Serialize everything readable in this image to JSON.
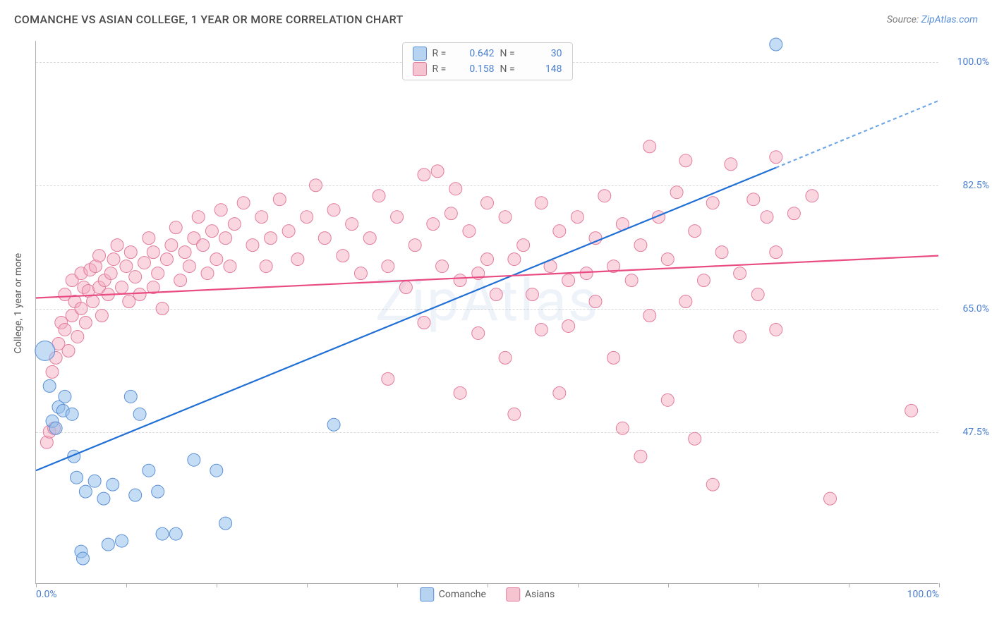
{
  "title": "COMANCHE VS ASIAN COLLEGE, 1 YEAR OR MORE CORRELATION CHART",
  "source_prefix": "Source: ",
  "source_name": "ZipAtlas.com",
  "watermark": "ZipAtlas",
  "chart": {
    "type": "scatter",
    "background_color": "#ffffff",
    "grid_color": "#d8d8d8",
    "axis_color": "#b0b0b0",
    "y_label": "College, 1 year or more",
    "y_label_fontsize": 14,
    "label_color": "#5a5a5a",
    "tick_label_color": "#4a7fd0",
    "tick_fontsize": 14,
    "xlim": [
      0,
      100
    ],
    "ylim": [
      26,
      103
    ],
    "x_tick_positions": [
      0,
      10,
      20,
      30,
      40,
      50,
      60,
      70,
      80,
      90,
      100
    ],
    "x_tick_labels": {
      "0": "0.0%",
      "100": "100.0%"
    },
    "y_gridlines": [
      47.5,
      65.0,
      82.5,
      100.0
    ],
    "y_tick_labels": [
      "47.5%",
      "65.0%",
      "82.5%",
      "100.0%"
    ],
    "legend_top": {
      "border_color": "#d0d0d0",
      "rows": [
        {
          "swatch_fill": "#b6d3f2",
          "swatch_stroke": "#5a8fd6",
          "r_label": "R =",
          "r_value": "0.642",
          "n_label": "N =",
          "n_value": "30"
        },
        {
          "swatch_fill": "#f6c4d1",
          "swatch_stroke": "#e37c9c",
          "r_label": "R =",
          "r_value": "0.158",
          "n_label": "N =",
          "n_value": "148"
        }
      ]
    },
    "legend_bottom": [
      {
        "swatch_fill": "#b6d3f2",
        "swatch_stroke": "#5a8fd6",
        "label": "Comanche"
      },
      {
        "swatch_fill": "#f6c4d1",
        "swatch_stroke": "#e37c9c",
        "label": "Asians"
      }
    ],
    "series": [
      {
        "name": "Comanche",
        "marker_fill": "rgba(149,192,236,0.55)",
        "marker_stroke": "#5a8fd6",
        "marker_stroke_width": 1,
        "marker_radius": 9,
        "trend": {
          "x1": 0,
          "y1": 42,
          "x2": 82,
          "y2": 85,
          "x2_dash": 100,
          "y2_dash": 94.5,
          "solid_color": "#1f6fd6",
          "dash_color": "#6fa6e6",
          "width": 2.2,
          "dash_pattern": "5,4"
        },
        "points": [
          {
            "x": 1.0,
            "y": 59,
            "r": 14
          },
          {
            "x": 1.5,
            "y": 54
          },
          {
            "x": 1.8,
            "y": 49
          },
          {
            "x": 2.2,
            "y": 48
          },
          {
            "x": 2.5,
            "y": 51
          },
          {
            "x": 3.0,
            "y": 50.5
          },
          {
            "x": 3.2,
            "y": 52.5
          },
          {
            "x": 4.0,
            "y": 50
          },
          {
            "x": 4.2,
            "y": 44
          },
          {
            "x": 4.5,
            "y": 41
          },
          {
            "x": 5.0,
            "y": 30.5
          },
          {
            "x": 5.2,
            "y": 29.5
          },
          {
            "x": 5.5,
            "y": 39
          },
          {
            "x": 6.5,
            "y": 40.5
          },
          {
            "x": 7.5,
            "y": 38
          },
          {
            "x": 8.0,
            "y": 31.5
          },
          {
            "x": 8.5,
            "y": 40
          },
          {
            "x": 9.5,
            "y": 32
          },
          {
            "x": 10.5,
            "y": 52.5
          },
          {
            "x": 11.0,
            "y": 38.5
          },
          {
            "x": 11.5,
            "y": 50
          },
          {
            "x": 12.5,
            "y": 42
          },
          {
            "x": 13.5,
            "y": 39
          },
          {
            "x": 14.0,
            "y": 33
          },
          {
            "x": 15.5,
            "y": 33
          },
          {
            "x": 17.5,
            "y": 43.5
          },
          {
            "x": 20.0,
            "y": 42
          },
          {
            "x": 21.0,
            "y": 34.5
          },
          {
            "x": 33.0,
            "y": 48.5
          },
          {
            "x": 82.0,
            "y": 102.5
          }
        ]
      },
      {
        "name": "Asians",
        "marker_fill": "rgba(242,170,190,0.48)",
        "marker_stroke": "#e37c9c",
        "marker_stroke_width": 1,
        "marker_radius": 9,
        "trend": {
          "x1": 0,
          "y1": 66.5,
          "x2": 100,
          "y2": 72.5,
          "solid_color": "#e94b82",
          "width": 2.2
        },
        "points": [
          {
            "x": 1.2,
            "y": 46
          },
          {
            "x": 1.5,
            "y": 47.5
          },
          {
            "x": 2.0,
            "y": 48
          },
          {
            "x": 1.8,
            "y": 56
          },
          {
            "x": 2.2,
            "y": 58
          },
          {
            "x": 2.5,
            "y": 60
          },
          {
            "x": 2.8,
            "y": 63
          },
          {
            "x": 3.2,
            "y": 62
          },
          {
            "x": 3.2,
            "y": 67
          },
          {
            "x": 3.6,
            "y": 59
          },
          {
            "x": 4.0,
            "y": 64
          },
          {
            "x": 4.0,
            "y": 69
          },
          {
            "x": 4.3,
            "y": 66
          },
          {
            "x": 4.6,
            "y": 61
          },
          {
            "x": 5.0,
            "y": 65
          },
          {
            "x": 5.0,
            "y": 70
          },
          {
            "x": 5.3,
            "y": 68
          },
          {
            "x": 5.5,
            "y": 63
          },
          {
            "x": 5.8,
            "y": 67.5
          },
          {
            "x": 6.0,
            "y": 70.5
          },
          {
            "x": 6.3,
            "y": 66
          },
          {
            "x": 6.6,
            "y": 71
          },
          {
            "x": 7.0,
            "y": 68
          },
          {
            "x": 7.0,
            "y": 72.5
          },
          {
            "x": 7.3,
            "y": 64
          },
          {
            "x": 7.6,
            "y": 69
          },
          {
            "x": 8.0,
            "y": 67
          },
          {
            "x": 8.3,
            "y": 70
          },
          {
            "x": 8.6,
            "y": 72
          },
          {
            "x": 9.0,
            "y": 74
          },
          {
            "x": 9.5,
            "y": 68
          },
          {
            "x": 10.0,
            "y": 71
          },
          {
            "x": 10.3,
            "y": 66
          },
          {
            "x": 10.5,
            "y": 73
          },
          {
            "x": 11.0,
            "y": 69.5
          },
          {
            "x": 11.5,
            "y": 67
          },
          {
            "x": 12.0,
            "y": 71.5
          },
          {
            "x": 12.5,
            "y": 75
          },
          {
            "x": 13.0,
            "y": 68
          },
          {
            "x": 13.0,
            "y": 73
          },
          {
            "x": 13.5,
            "y": 70
          },
          {
            "x": 14.0,
            "y": 65
          },
          {
            "x": 14.5,
            "y": 72
          },
          {
            "x": 15.0,
            "y": 74
          },
          {
            "x": 15.5,
            "y": 76.5
          },
          {
            "x": 16.0,
            "y": 69
          },
          {
            "x": 16.5,
            "y": 73
          },
          {
            "x": 17.0,
            "y": 71
          },
          {
            "x": 17.5,
            "y": 75
          },
          {
            "x": 18.0,
            "y": 78
          },
          {
            "x": 18.5,
            "y": 74
          },
          {
            "x": 19.0,
            "y": 70
          },
          {
            "x": 19.5,
            "y": 76
          },
          {
            "x": 20.0,
            "y": 72
          },
          {
            "x": 20.5,
            "y": 79
          },
          {
            "x": 21.0,
            "y": 75
          },
          {
            "x": 21.5,
            "y": 71
          },
          {
            "x": 22.0,
            "y": 77
          },
          {
            "x": 23.0,
            "y": 80
          },
          {
            "x": 24.0,
            "y": 74
          },
          {
            "x": 25.0,
            "y": 78
          },
          {
            "x": 25.5,
            "y": 71
          },
          {
            "x": 26.0,
            "y": 75
          },
          {
            "x": 27.0,
            "y": 80.5
          },
          {
            "x": 28.0,
            "y": 76
          },
          {
            "x": 29.0,
            "y": 72
          },
          {
            "x": 30.0,
            "y": 78
          },
          {
            "x": 31.0,
            "y": 82.5
          },
          {
            "x": 32.0,
            "y": 75
          },
          {
            "x": 33.0,
            "y": 79
          },
          {
            "x": 34.0,
            "y": 72.5
          },
          {
            "x": 35.0,
            "y": 77
          },
          {
            "x": 36.0,
            "y": 70
          },
          {
            "x": 37.0,
            "y": 75
          },
          {
            "x": 38.0,
            "y": 81
          },
          {
            "x": 39.0,
            "y": 71
          },
          {
            "x": 39.0,
            "y": 55
          },
          {
            "x": 40.0,
            "y": 78
          },
          {
            "x": 41.0,
            "y": 68
          },
          {
            "x": 42.0,
            "y": 74
          },
          {
            "x": 43.0,
            "y": 84
          },
          {
            "x": 43.0,
            "y": 63
          },
          {
            "x": 44.0,
            "y": 77
          },
          {
            "x": 44.5,
            "y": 84.5
          },
          {
            "x": 45.0,
            "y": 71
          },
          {
            "x": 46.0,
            "y": 78.5
          },
          {
            "x": 46.5,
            "y": 82
          },
          {
            "x": 47.0,
            "y": 69
          },
          {
            "x": 47.0,
            "y": 53
          },
          {
            "x": 48.0,
            "y": 76
          },
          {
            "x": 49.0,
            "y": 70
          },
          {
            "x": 49.0,
            "y": 61.5
          },
          {
            "x": 50.0,
            "y": 80
          },
          {
            "x": 50.0,
            "y": 72
          },
          {
            "x": 51.0,
            "y": 67
          },
          {
            "x": 52.0,
            "y": 78
          },
          {
            "x": 52.0,
            "y": 58
          },
          {
            "x": 53.0,
            "y": 72
          },
          {
            "x": 53.0,
            "y": 50
          },
          {
            "x": 54.0,
            "y": 74
          },
          {
            "x": 55.0,
            "y": 67
          },
          {
            "x": 56.0,
            "y": 80
          },
          {
            "x": 56.0,
            "y": 62
          },
          {
            "x": 57.0,
            "y": 71
          },
          {
            "x": 58.0,
            "y": 76
          },
          {
            "x": 58.0,
            "y": 53
          },
          {
            "x": 59.0,
            "y": 69
          },
          {
            "x": 59.0,
            "y": 62.5
          },
          {
            "x": 60.0,
            "y": 78
          },
          {
            "x": 61.0,
            "y": 70
          },
          {
            "x": 62.0,
            "y": 75
          },
          {
            "x": 62.0,
            "y": 66
          },
          {
            "x": 63.0,
            "y": 81
          },
          {
            "x": 64.0,
            "y": 71
          },
          {
            "x": 64.0,
            "y": 58
          },
          {
            "x": 65.0,
            "y": 77
          },
          {
            "x": 65.0,
            "y": 48
          },
          {
            "x": 66.0,
            "y": 69
          },
          {
            "x": 67.0,
            "y": 74
          },
          {
            "x": 67.0,
            "y": 44
          },
          {
            "x": 68.0,
            "y": 88
          },
          {
            "x": 68.0,
            "y": 64
          },
          {
            "x": 69.0,
            "y": 78
          },
          {
            "x": 70.0,
            "y": 72
          },
          {
            "x": 70.0,
            "y": 52
          },
          {
            "x": 71.0,
            "y": 81.5
          },
          {
            "x": 72.0,
            "y": 86
          },
          {
            "x": 72.0,
            "y": 66
          },
          {
            "x": 73.0,
            "y": 76
          },
          {
            "x": 73.0,
            "y": 46.5
          },
          {
            "x": 74.0,
            "y": 69
          },
          {
            "x": 75.0,
            "y": 80
          },
          {
            "x": 75.0,
            "y": 40
          },
          {
            "x": 76.0,
            "y": 73
          },
          {
            "x": 77.0,
            "y": 85.5
          },
          {
            "x": 78.0,
            "y": 70
          },
          {
            "x": 78.0,
            "y": 61
          },
          {
            "x": 79.5,
            "y": 80.5
          },
          {
            "x": 80.0,
            "y": 67
          },
          {
            "x": 81.0,
            "y": 78
          },
          {
            "x": 82.0,
            "y": 73
          },
          {
            "x": 82.0,
            "y": 62
          },
          {
            "x": 82.0,
            "y": 86.5
          },
          {
            "x": 84.0,
            "y": 78.5
          },
          {
            "x": 86.0,
            "y": 81
          },
          {
            "x": 88.0,
            "y": 38
          },
          {
            "x": 97.0,
            "y": 50.5
          }
        ]
      }
    ]
  }
}
